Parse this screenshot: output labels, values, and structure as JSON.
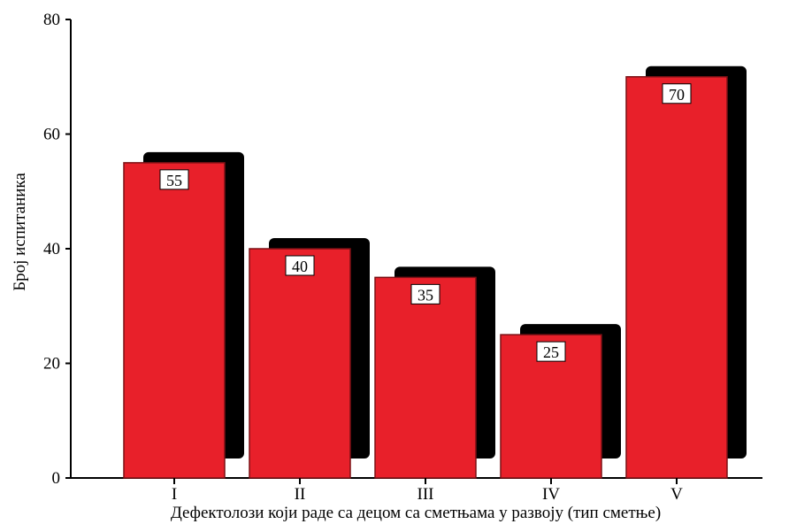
{
  "chart_data": {
    "type": "bar",
    "title": "",
    "xlabel": "Дефектолози који раде са децом са сметњама у развоју (тип сметње)",
    "ylabel": "Број испитаника",
    "categories": [
      "I",
      "II",
      "III",
      "IV",
      "V"
    ],
    "values": [
      55,
      40,
      35,
      25,
      70
    ],
    "data_labels": [
      "55",
      "40",
      "35",
      "25",
      "70"
    ],
    "ylim": [
      0,
      80
    ],
    "yticks": [
      "0",
      "20",
      "40",
      "60",
      "80"
    ],
    "grid": false,
    "legend": "none",
    "bar_color": "#e8202a",
    "shadow_color": "#000000",
    "label_box_color": "#ffffff"
  }
}
